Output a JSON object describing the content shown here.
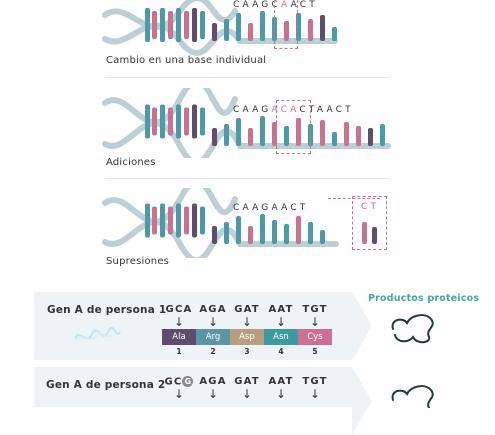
{
  "sections": [
    {
      "label": "Cambio en una base individual",
      "sequence": [
        "C",
        "A",
        "A",
        "G",
        "C",
        "A",
        "A",
        "C",
        "T"
      ],
      "highlight": [
        5
      ]
    },
    {
      "label": "Adiciones",
      "sequence": [
        "C",
        "A",
        "A",
        "G",
        "A",
        "C",
        "A",
        "C",
        "T",
        "A",
        "A",
        "C",
        "T"
      ],
      "highlight": [
        4,
        5,
        6
      ]
    },
    {
      "label": "Supresiones",
      "sequence": [
        "C",
        "A",
        "A",
        "G",
        "A",
        "A",
        "C",
        "T"
      ],
      "removed": [
        "C",
        "T"
      ]
    }
  ],
  "legend_title": "Productos proteicos",
  "genes": [
    {
      "title": "Gen A de persona 1",
      "codons": [
        "GCA",
        "AGA",
        "GAT",
        "AAT",
        "TGT"
      ],
      "amino_acids": [
        "Ala",
        "Arg",
        "Asp",
        "Asn",
        "Cys"
      ],
      "numbers": [
        "1",
        "2",
        "3",
        "4",
        "5"
      ]
    },
    {
      "title": "Gen A de persona 2",
      "codon_first_prefix": "GC",
      "codon_first_mutation": "G",
      "codons": [
        "GCG",
        "AGA",
        "GAT",
        "AAT",
        "TGT"
      ]
    }
  ],
  "colors": {
    "teal": "#4a9aaa",
    "pink": "#c9718f",
    "purple": "#5e4d6e",
    "backbone": "#bccfd5",
    "ala": "#5e4d6e",
    "arg": "#5c95a6",
    "asp": "#b89e7e",
    "asn": "#3f9aa0",
    "cys": "#cc6f93"
  },
  "arrow_glyph": "↓"
}
